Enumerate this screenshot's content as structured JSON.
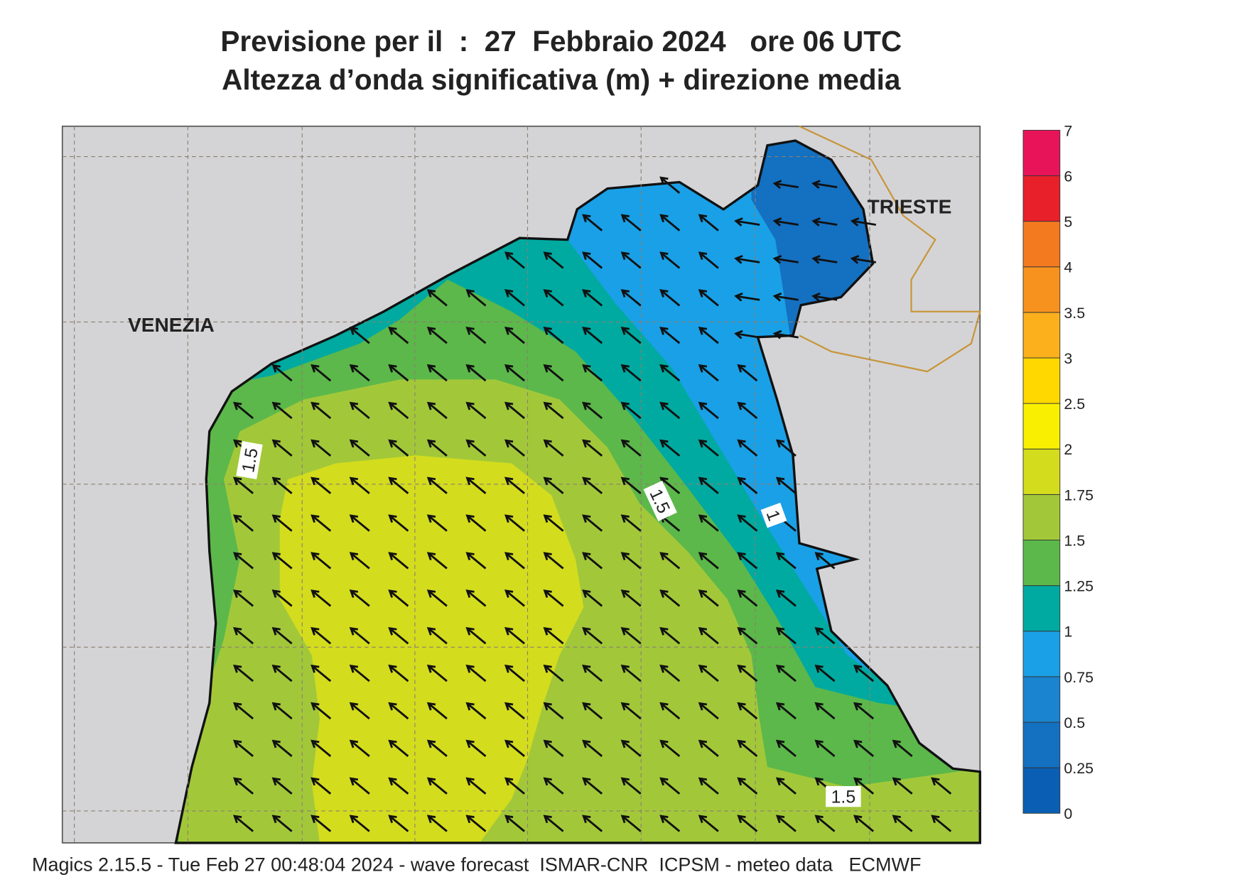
{
  "header": {
    "line1": "Previsione per il  :  27  Febbraio 2024   ore 06 UTC",
    "line2": "Altezza d’onda significativa (m) + direzione media"
  },
  "places": [
    "VENEZIA",
    "TRIESTE"
  ],
  "contour_labels": [
    1.5,
    1.5,
    1,
    1.5
  ],
  "colorbar": {
    "levels": [
      0,
      0.25,
      0.5,
      0.75,
      1,
      1.25,
      1.5,
      1.75,
      2,
      2.5,
      3,
      3.5,
      4,
      5,
      6,
      7
    ],
    "colors": [
      "#0a5fb4",
      "#1470c0",
      "#1a84d0",
      "#1aa0e6",
      "#00aaa0",
      "#5cb84a",
      "#a2c83a",
      "#d4dc1e",
      "#f8f000",
      "#ffd800",
      "#fbb01c",
      "#f8921e",
      "#f47a20",
      "#e8202a",
      "#e8145a"
    ]
  },
  "footer": "Magics 2.15.5 - Tue Feb 27 00:48:04 2024 - wave forecast  ISMAR-CNR  ICPSM - meteo data   ECMWF"
}
